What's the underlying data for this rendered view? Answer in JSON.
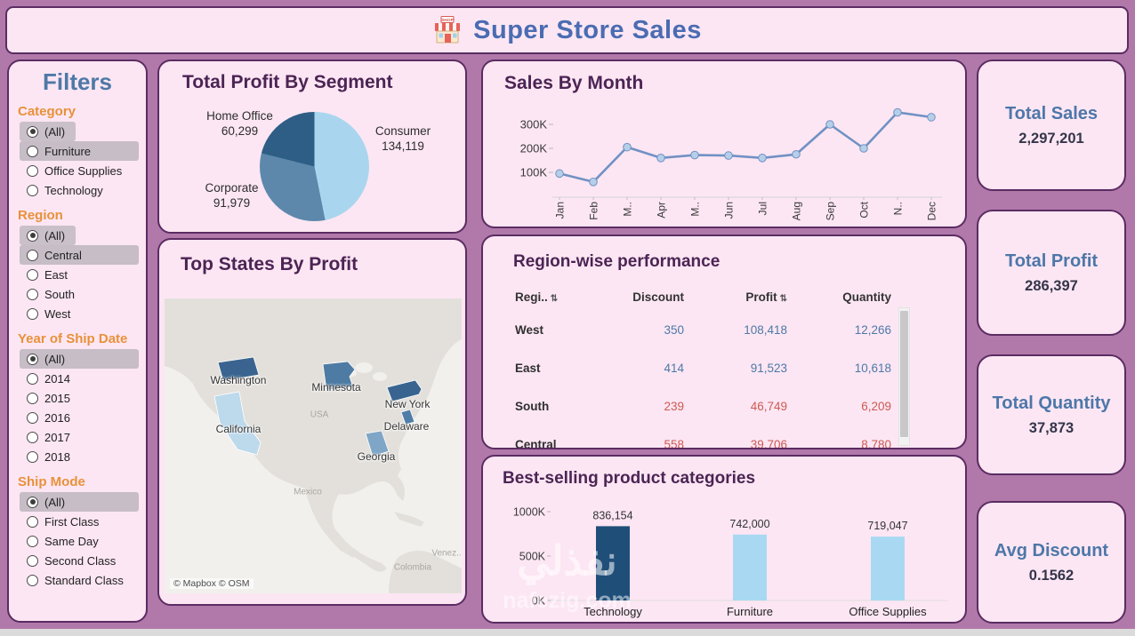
{
  "header": {
    "title": "Super Store Sales",
    "icon_sign_text": "SHOP"
  },
  "filters": {
    "title": "Filters",
    "groups": [
      {
        "label": "Category",
        "items": [
          {
            "label": "(All)",
            "selected": true,
            "highlight": "pill"
          },
          {
            "label": "Furniture",
            "selected": false,
            "highlight": "bar"
          },
          {
            "label": "Office Supplies",
            "selected": false,
            "highlight": "none"
          },
          {
            "label": "Technology",
            "selected": false,
            "highlight": "none"
          }
        ]
      },
      {
        "label": "Region",
        "items": [
          {
            "label": "(All)",
            "selected": true,
            "highlight": "pill"
          },
          {
            "label": "Central",
            "selected": false,
            "highlight": "bar"
          },
          {
            "label": "East",
            "selected": false,
            "highlight": "none"
          },
          {
            "label": "South",
            "selected": false,
            "highlight": "none"
          },
          {
            "label": "West",
            "selected": false,
            "highlight": "none"
          }
        ]
      },
      {
        "label": "Year of Ship Date",
        "items": [
          {
            "label": "(All)",
            "selected": true,
            "highlight": "bar"
          },
          {
            "label": "2014",
            "selected": false,
            "highlight": "none"
          },
          {
            "label": "2015",
            "selected": false,
            "highlight": "none"
          },
          {
            "label": "2016",
            "selected": false,
            "highlight": "none"
          },
          {
            "label": "2017",
            "selected": false,
            "highlight": "none"
          },
          {
            "label": "2018",
            "selected": false,
            "highlight": "none"
          }
        ]
      },
      {
        "label": "Ship Mode",
        "items": [
          {
            "label": "(All)",
            "selected": true,
            "highlight": "bar"
          },
          {
            "label": "First Class",
            "selected": false,
            "highlight": "none"
          },
          {
            "label": "Same Day",
            "selected": false,
            "highlight": "none"
          },
          {
            "label": "Second Class",
            "selected": false,
            "highlight": "none"
          },
          {
            "label": "Standard Class",
            "selected": false,
            "highlight": "none"
          }
        ]
      }
    ]
  },
  "segment_pie": {
    "title": "Total Profit By Segment",
    "chart_data": {
      "type": "pie",
      "slices": [
        {
          "label": "Consumer",
          "value": 134119,
          "display": "134,119",
          "color": "#a9d6ee"
        },
        {
          "label": "Corporate",
          "value": 91979,
          "display": "91,979",
          "color": "#5d88ac"
        },
        {
          "label": "Home Office",
          "value": 60299,
          "display": "60,299",
          "color": "#2e5e85"
        }
      ]
    }
  },
  "sales_by_month": {
    "title": "Sales By Month",
    "chart_data": {
      "type": "line",
      "x": [
        "Jan",
        "Feb",
        "M..",
        "Apr",
        "M..",
        "Jun",
        "Jul",
        "Aug",
        "Sep",
        "Oct",
        "N..",
        "Dec"
      ],
      "values_k": [
        95,
        60,
        205,
        160,
        172,
        170,
        160,
        175,
        300,
        200,
        350,
        330
      ],
      "y_ticks": [
        {
          "label": "100K",
          "k": 100
        },
        {
          "label": "200K",
          "k": 200
        },
        {
          "label": "300K",
          "k": 300
        }
      ],
      "line_color": "#7191c4",
      "marker_fill": "#b5cfe9"
    }
  },
  "top_states": {
    "title": "Top States By Profit",
    "states": [
      {
        "name": "Washington",
        "fill": "#3a648f"
      },
      {
        "name": "Minnesota",
        "fill": "#4d7ba3"
      },
      {
        "name": "New York",
        "fill": "#39648f"
      },
      {
        "name": "Delaware",
        "fill": "#4f7da8"
      },
      {
        "name": "California",
        "fill": "#bdd9ec"
      },
      {
        "name": "Georgia",
        "fill": "#7fa6c6"
      }
    ],
    "context_labels": [
      "USA",
      "Mexico",
      "Colombia",
      "Venez.."
    ],
    "attribution": "© Mapbox © OSM"
  },
  "region_table": {
    "title": "Region-wise performance",
    "sort_glyph": "⇅",
    "columns": [
      {
        "label": "Regi..",
        "sort_icon": true
      },
      {
        "label": "Discount",
        "sort_icon": false
      },
      {
        "label": "Profit",
        "sort_icon": true
      },
      {
        "label": "Quantity",
        "sort_icon": false
      }
    ],
    "rows": [
      {
        "region": "West",
        "discount": "350",
        "profit": "108,418",
        "quantity": "12,266",
        "value_color": "#4e79a7"
      },
      {
        "region": "East",
        "discount": "414",
        "profit": "91,523",
        "quantity": "10,618",
        "value_color": "#4e79a7"
      },
      {
        "region": "South",
        "discount": "239",
        "profit": "46,749",
        "quantity": "6,209",
        "value_color": "#cc5a52"
      },
      {
        "region": "Central",
        "discount": "558",
        "profit": "39,706",
        "quantity": "8,780",
        "value_color": "#cc5a52"
      }
    ]
  },
  "best_selling": {
    "title": "Best-selling product categories",
    "chart_data": {
      "type": "bar",
      "categories": [
        "Technology",
        "Furniture",
        "Office Supplies"
      ],
      "values": [
        836154,
        742000,
        719047
      ],
      "display_values": [
        "836,154",
        "742,000",
        "719,047"
      ],
      "bar_colors": [
        "#1f4e79",
        "#a9d9f2",
        "#a9d9f2"
      ],
      "y_ticks": [
        {
          "label": "0K",
          "k": 0
        },
        {
          "label": "500K",
          "k": 500
        },
        {
          "label": "1000K",
          "k": 1000
        }
      ],
      "ylim_k": [
        0,
        1000
      ]
    }
  },
  "kpis": [
    {
      "title": "Total Sales",
      "value": "2,297,201"
    },
    {
      "title": "Total Profit",
      "value": "286,397"
    },
    {
      "title": "Total Quantity",
      "value": "37,873"
    },
    {
      "title": "Avg Discount",
      "value": "0.1562"
    }
  ],
  "watermark": {
    "line1": "نفذلي",
    "line2": "nafezig.com"
  }
}
